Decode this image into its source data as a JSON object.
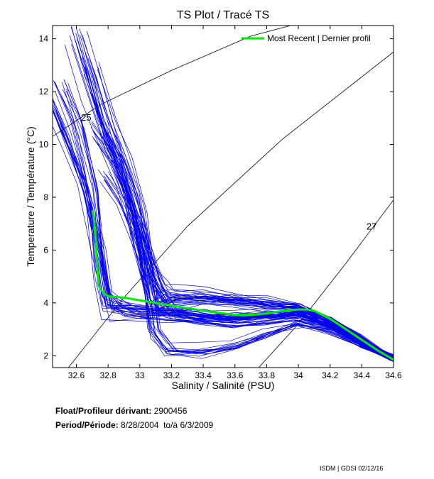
{
  "chart_data": {
    "type": "line",
    "title": "TS Plot / Tracé TS",
    "xlabel": "Salinity / Salinité (PSU)",
    "ylabel": "Temperature / Température (°C)",
    "xlim": [
      32.45,
      34.6
    ],
    "ylim": [
      1.55,
      14.5
    ],
    "xticks": [
      32.6,
      32.8,
      33,
      33.2,
      33.4,
      33.6,
      33.8,
      34,
      34.2,
      34.4,
      34.6
    ],
    "yticks": [
      2,
      4,
      6,
      8,
      10,
      12,
      14
    ],
    "xtick_labels": [
      "32.6",
      "32.8",
      "33",
      "33.2",
      "33.4",
      "33.6",
      "33.8",
      "34",
      "34.2",
      "34.4",
      "34.6"
    ],
    "ytick_labels": [
      "2",
      "4",
      "6",
      "8",
      "10",
      "12",
      "14"
    ],
    "grid": false,
    "legend_position": "top-right",
    "series": [
      {
        "name": "Most Recent | Dernier profil",
        "color": "#00ee00",
        "x": [
          32.7,
          32.71,
          32.72,
          32.73,
          32.74,
          32.76,
          32.8,
          32.9,
          33.0,
          33.2,
          33.4,
          33.6,
          33.7,
          33.8,
          33.9,
          34.0,
          34.05,
          34.1,
          34.2,
          34.3,
          34.4,
          34.5,
          34.6
        ],
        "y": [
          7.5,
          7.3,
          6.5,
          5.5,
          4.65,
          4.45,
          4.25,
          4.2,
          4.1,
          3.9,
          3.7,
          3.55,
          3.55,
          3.6,
          3.7,
          3.75,
          3.75,
          3.7,
          3.4,
          3.0,
          2.6,
          2.2,
          1.85
        ]
      }
    ],
    "historical_profiles": {
      "color": "#0000ee",
      "groups": [
        {
          "x": [
            32.45,
            32.55,
            32.65,
            32.75,
            32.8,
            32.9,
            33.0,
            33.2,
            33.4,
            33.6,
            33.8,
            34.0,
            34.2,
            34.4,
            34.6
          ],
          "y": [
            11.5,
            10.0,
            8.5,
            6.0,
            4.2,
            3.8,
            3.7,
            3.6,
            3.5,
            3.5,
            3.6,
            3.6,
            3.2,
            2.5,
            1.9
          ]
        },
        {
          "x": [
            32.5,
            32.6,
            32.7,
            32.75,
            32.8,
            33.0,
            33.2,
            33.4,
            33.6,
            33.8,
            34.0,
            34.2,
            34.4,
            34.6
          ],
          "y": [
            12.0,
            10.5,
            8.0,
            5.0,
            3.6,
            3.5,
            3.4,
            3.3,
            3.2,
            3.3,
            3.4,
            3.1,
            2.5,
            1.9
          ]
        },
        {
          "x": [
            32.6,
            32.7,
            32.8,
            32.9,
            33.0,
            33.1,
            33.2,
            33.4,
            33.6,
            33.8,
            34.0,
            34.2,
            34.4,
            34.6
          ],
          "y": [
            14.0,
            12.0,
            10.0,
            8.5,
            6.5,
            4.5,
            3.6,
            3.4,
            3.3,
            3.4,
            3.5,
            3.1,
            2.5,
            1.9
          ]
        },
        {
          "x": [
            32.7,
            32.8,
            32.9,
            33.0,
            33.05,
            33.1,
            33.2,
            33.4,
            33.6,
            33.8,
            34.0,
            34.2,
            34.4,
            34.6
          ],
          "y": [
            13.0,
            11.0,
            9.5,
            7.5,
            5.5,
            3.0,
            2.2,
            2.2,
            2.4,
            2.8,
            3.2,
            3.0,
            2.4,
            1.9
          ]
        },
        {
          "x": [
            32.75,
            32.85,
            32.95,
            33.0,
            33.05,
            33.1,
            33.2,
            33.4,
            33.6,
            33.8,
            34.0,
            34.2,
            34.4,
            34.6
          ],
          "y": [
            10.5,
            9.5,
            8.0,
            6.5,
            5.0,
            3.8,
            4.0,
            4.1,
            4.0,
            3.9,
            3.8,
            3.3,
            2.6,
            1.9
          ]
        },
        {
          "x": [
            32.8,
            32.9,
            33.0,
            33.1,
            33.15,
            33.2,
            33.4,
            33.6,
            33.8,
            34.0,
            34.2,
            34.4,
            34.6
          ],
          "y": [
            9.0,
            8.0,
            6.5,
            5.0,
            4.5,
            4.4,
            4.3,
            4.2,
            4.0,
            3.9,
            3.4,
            2.7,
            1.9
          ]
        }
      ]
    },
    "density_contours": [
      {
        "label": "25",
        "x": [
          32.45,
          32.75,
          33.2,
          33.7,
          33.95
        ],
        "y": [
          10.3,
          11.5,
          12.8,
          14.1,
          14.5
        ]
      },
      {
        "label": "",
        "x": [
          32.55,
          32.9,
          33.3,
          33.9,
          34.6
        ],
        "y": [
          1.55,
          4.2,
          6.9,
          10.2,
          13.5
        ]
      },
      {
        "label": "27",
        "x": [
          33.75,
          34.0,
          34.3,
          34.6
        ],
        "y": [
          1.55,
          3.2,
          5.5,
          7.9
        ]
      }
    ],
    "annotations": [
      "25",
      "27"
    ]
  },
  "info": {
    "float_label": "Float/Profileur dérivant:",
    "float_value": "2900456",
    "period_label": "Period/Période:",
    "period_start": "8/28/2004",
    "period_to": "to/à",
    "period_end": "6/3/2009"
  },
  "credit": "ISDM | GDSI 02/12/16"
}
